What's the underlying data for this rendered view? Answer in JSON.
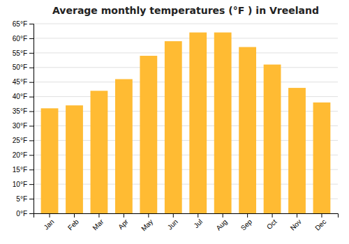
{
  "chart_data": {
    "type": "bar",
    "title": "Average monthly temperatures (°F ) in Vreeland",
    "categories": [
      "Jan",
      "Feb",
      "Mar",
      "Apr",
      "May",
      "Jun",
      "Jul",
      "Aug",
      "Sep",
      "Oct",
      "Nov",
      "Dec"
    ],
    "values": [
      36,
      37,
      42,
      46,
      54,
      59,
      62,
      62,
      57,
      51,
      43,
      38
    ],
    "color": "#FFBB33",
    "ylim": [
      0,
      65
    ],
    "yticks": [
      {
        "value": 0,
        "label": "0°F"
      },
      {
        "value": 5,
        "label": "5°F"
      },
      {
        "value": 10,
        "label": "10°F"
      },
      {
        "value": 15,
        "label": "15°F"
      },
      {
        "value": 20,
        "label": "20°F"
      },
      {
        "value": 25,
        "label": "25°F"
      },
      {
        "value": 30,
        "label": "30°F"
      },
      {
        "value": 35,
        "label": "35°F"
      },
      {
        "value": 40,
        "label": "40°F"
      },
      {
        "value": 45,
        "label": "45°F"
      },
      {
        "value": 50,
        "label": "50°F"
      },
      {
        "value": 55,
        "label": "55°F"
      },
      {
        "value": 60,
        "label": "60°F"
      },
      {
        "value": 65,
        "label": "65°F"
      }
    ],
    "grid": true
  }
}
